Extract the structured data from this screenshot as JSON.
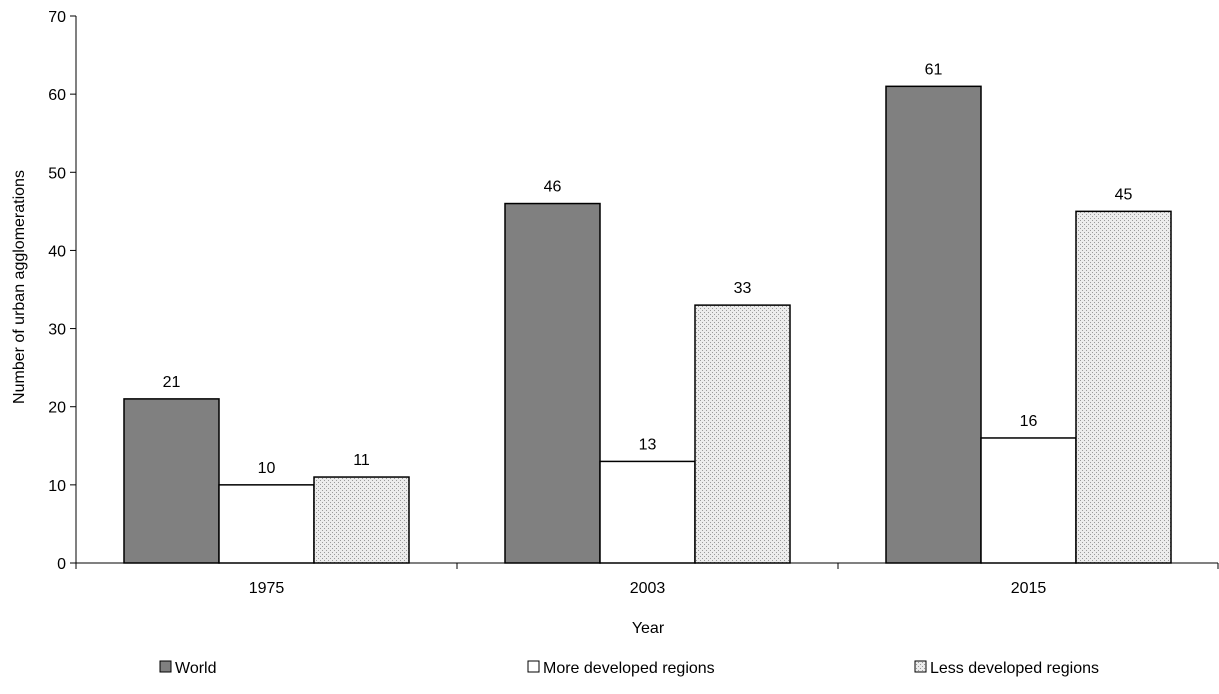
{
  "chart_data": {
    "type": "bar",
    "title": "",
    "xlabel": "Year",
    "ylabel": "Number of urban agglomerations",
    "categories": [
      "1975",
      "2003",
      "2015"
    ],
    "series": [
      {
        "name": "World",
        "values": [
          21,
          46,
          61
        ],
        "color": "#808080",
        "pattern": "solid"
      },
      {
        "name": "More developed regions",
        "values": [
          10,
          13,
          16
        ],
        "color": "#ffffff",
        "pattern": "solid"
      },
      {
        "name": "Less developed regions",
        "values": [
          11,
          33,
          45
        ],
        "color": "#e6e6e6",
        "pattern": "dotted"
      }
    ],
    "ylim": [
      0,
      70
    ],
    "yticks": [
      0,
      10,
      20,
      30,
      40,
      50,
      60,
      70
    ],
    "data_labels": true,
    "grid": false,
    "legend_position": "bottom"
  }
}
